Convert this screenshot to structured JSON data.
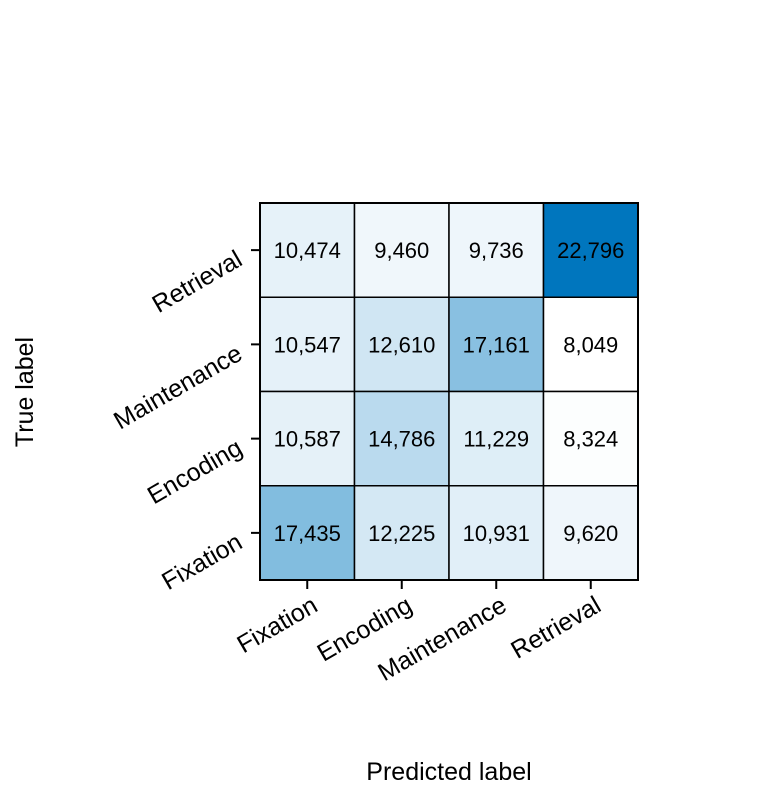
{
  "chart_data": {
    "type": "heatmap",
    "title": "",
    "xlabel": "Predicted label",
    "ylabel": "True label",
    "x_categories": [
      "Fixation",
      "Encoding",
      "Maintenance",
      "Retrieval"
    ],
    "y_categories_top_to_bottom": [
      "Retrieval",
      "Maintenance",
      "Encoding",
      "Fixation"
    ],
    "values": [
      [
        10474,
        9460,
        9736,
        22796
      ],
      [
        10547,
        12610,
        17161,
        8049
      ],
      [
        10587,
        14786,
        11229,
        8324
      ],
      [
        17435,
        12225,
        10931,
        9620
      ]
    ],
    "labels": [
      [
        "10,474",
        "9,460",
        "9,736",
        "22,796"
      ],
      [
        "10,547",
        "12,610",
        "17,161",
        "8,049"
      ],
      [
        "10,587",
        "14,786",
        "11,229",
        "8,324"
      ],
      [
        "17,435",
        "12,225",
        "10,931",
        "9,620"
      ]
    ],
    "colormap": {
      "low": "#ffffff",
      "mid": "#b3d7ec",
      "high": "#0076be"
    },
    "grid": false,
    "legend": "none"
  }
}
